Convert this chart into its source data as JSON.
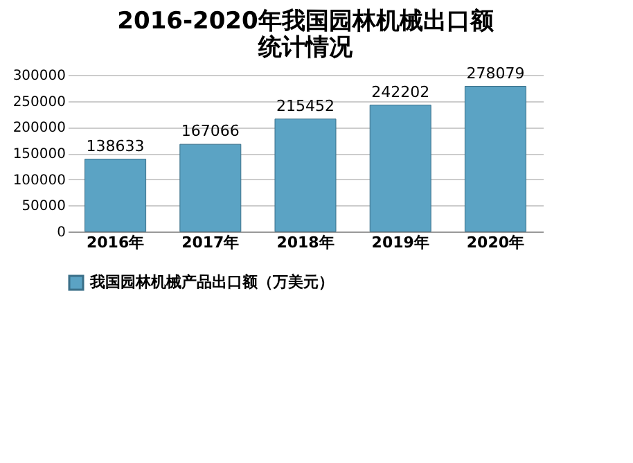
{
  "chart_data": {
    "type": "bar",
    "title": [
      "2016-2020年我国园林机械出口额",
      "统计情况"
    ],
    "categories": [
      "2016年",
      "2017年",
      "2018年",
      "2019年",
      "2020年"
    ],
    "series": [
      {
        "name": "我国园林机械产品出口额（万美元）",
        "color": "#5ba3c4",
        "values": [
          138633,
          167066,
          215452,
          242202,
          278079
        ]
      }
    ],
    "ylim": [
      0,
      300000
    ],
    "yticks": [
      0,
      50000,
      100000,
      150000,
      200000,
      250000,
      300000
    ],
    "grid": "y",
    "legend": "bottom",
    "data_labels": true
  }
}
